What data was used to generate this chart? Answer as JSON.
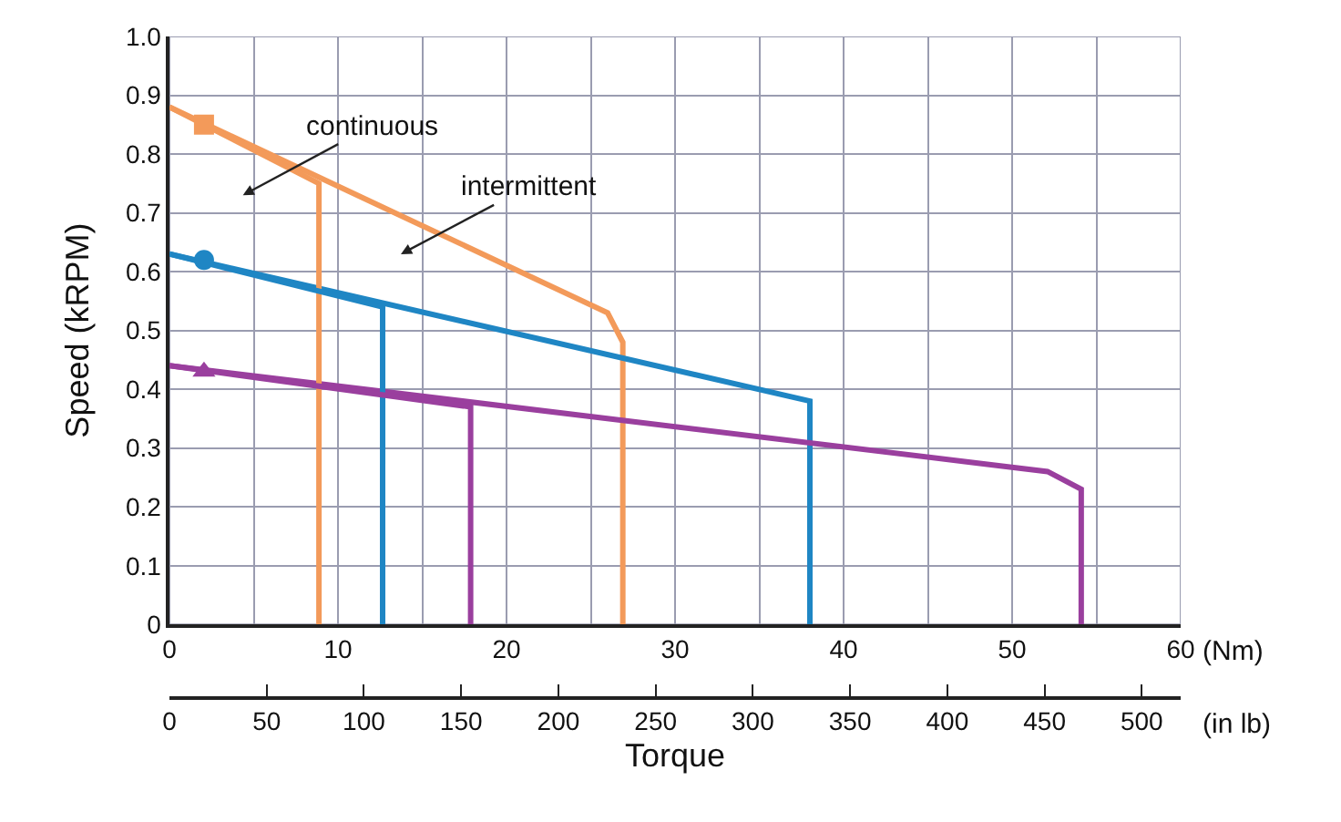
{
  "chart_data": {
    "type": "line",
    "xlabel": "Torque",
    "ylabel": "Speed (kRPM)",
    "xlim": [
      0,
      60
    ],
    "xticks": [
      0,
      {
        "value": 5,
        "label": null
      },
      10,
      {
        "value": 15,
        "label": null
      },
      20,
      {
        "value": 25,
        "label": null
      },
      30,
      {
        "value": 35,
        "label": null
      },
      40,
      {
        "value": 45,
        "label": null
      },
      50,
      {
        "value": 55,
        "label": null
      },
      60
    ],
    "x2lim": [
      0,
      520
    ],
    "x2ticks": [
      0,
      50,
      100,
      150,
      200,
      250,
      300,
      350,
      400,
      450,
      500
    ],
    "ylim": [
      0,
      1.0
    ],
    "yticks": [
      0,
      0.1,
      0.2,
      0.3,
      0.4,
      0.5,
      0.6,
      0.7,
      0.8,
      0.9,
      {
        "value": 1.0,
        "label": "1.0"
      }
    ],
    "grid": true,
    "marker": "none",
    "line_style": "solid",
    "series": [
      {
        "color": "#f39a5a",
        "x": [
          0,
          26.0,
          26.9,
          26.9
        ],
        "values": [
          0.88,
          0.53,
          0.48,
          0
        ]
      },
      {
        "color": "#1f86c4",
        "x": [
          0,
          38.0,
          38.0
        ],
        "values": [
          0.63,
          0.38,
          0
        ]
      },
      {
        "color": "#9a3f9e",
        "x": [
          0,
          52.1,
          54.1,
          54.1
        ],
        "values": [
          0.44,
          0.26,
          0.23,
          0
        ]
      },
      {
        "color": "#f39a5a",
        "x": [
          0,
          8.87,
          8.87
        ],
        "values": [
          0.88,
          0.75,
          0
        ]
      },
      {
        "color": "#1f86c4",
        "x": [
          0,
          12.65,
          12.65
        ],
        "values": [
          0.63,
          0.54,
          0
        ]
      },
      {
        "color": "#9a3f9e",
        "x": [
          0,
          17.87,
          17.87
        ],
        "values": [
          0.44,
          0.37,
          0
        ]
      },
      {
        "type": "scatter",
        "marker": "square",
        "color": "#f39a5a",
        "x": [
          2.05
        ],
        "values": [
          0.85
        ]
      },
      {
        "type": "scatter",
        "marker": "circle",
        "color": "#1f86c4",
        "x": [
          2.05
        ],
        "values": [
          0.62
        ]
      },
      {
        "type": "scatter",
        "marker": "triangle",
        "color": "#9a3f9e",
        "x": [
          2.05
        ],
        "values": [
          0.43
        ]
      }
    ],
    "annotations": [
      "continuous",
      "intermittent",
      "(Nm)",
      "(in lb)"
    ]
  }
}
